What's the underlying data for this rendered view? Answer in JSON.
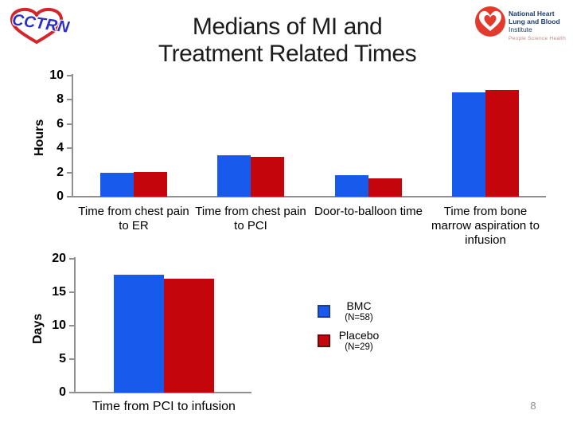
{
  "slide": {
    "title_line1": "Medians of MI and",
    "title_line2": "Treatment Related Times",
    "page_number": "8"
  },
  "logos": {
    "cctrn": {
      "text": "CCTRN"
    },
    "nhlbi": {
      "line1": "National Heart",
      "line2_bold": "Lung and Blood",
      "line2_rest": " Institute",
      "tagline": "People Science Health"
    }
  },
  "colors": {
    "bmc_blue": "#175AEC",
    "placebo_red": "#C4060C",
    "bmc_border": "#1e3d96",
    "placebo_border": "#70090d",
    "axis_gray": "#909090"
  },
  "legend": {
    "items": [
      {
        "label": "BMC",
        "sublabel": "(N=58)",
        "color": "#175AEC",
        "border": "#1e3d96"
      },
      {
        "label": "Placebo",
        "sublabel": "(N=29)",
        "color": "#C4060C",
        "border": "#70090d"
      }
    ]
  },
  "chart_data": [
    {
      "type": "bar",
      "title": "",
      "xlabel": "",
      "ylabel": "Hours",
      "ylim": [
        0,
        10
      ],
      "yticks": [
        0,
        2,
        4,
        6,
        8,
        10
      ],
      "grid": false,
      "legend_position": "below-right",
      "categories": [
        "Time from chest pain to ER",
        "Time from chest pain to PCI",
        "Door-to-balloon time",
        "Time from bone marrow aspiration to infusion"
      ],
      "series": [
        {
          "name": "BMC (N=58)",
          "color": "#175AEC",
          "values": [
            2.0,
            3.4,
            1.75,
            8.6
          ]
        },
        {
          "name": "Placebo (N=29)",
          "color": "#C4060C",
          "values": [
            2.05,
            3.3,
            1.5,
            8.8
          ]
        }
      ]
    },
    {
      "type": "bar",
      "title": "",
      "xlabel": "",
      "ylabel": "Days",
      "ylim": [
        0,
        20
      ],
      "yticks": [
        0,
        5,
        10,
        15,
        20
      ],
      "grid": false,
      "legend_position": "right",
      "categories": [
        "Time from PCI to infusion"
      ],
      "series": [
        {
          "name": "BMC (N=58)",
          "color": "#175AEC",
          "values": [
            17.6
          ]
        },
        {
          "name": "Placebo (N=29)",
          "color": "#C4060C",
          "values": [
            17.0
          ]
        }
      ]
    }
  ]
}
